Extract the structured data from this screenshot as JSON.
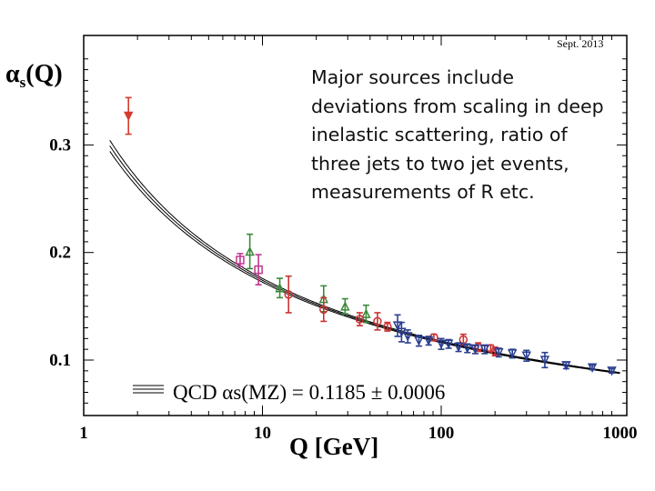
{
  "chart_data": {
    "type": "scatter",
    "date_stamp": "Sept. 2013",
    "ylabel_main": "α",
    "ylabel_sub": "s",
    "ylabel_tail": "(Q)",
    "xlabel": "Q [GeV]",
    "x_scale": "log",
    "xlim": [
      1,
      1000
    ],
    "ylim": [
      0.06,
      0.38
    ],
    "x_ticks": [
      {
        "value": 1,
        "label": "1"
      },
      {
        "value": 10,
        "label": "10"
      },
      {
        "value": 100,
        "label": "100"
      },
      {
        "value": 1000,
        "label": "1000"
      }
    ],
    "y_ticks": [
      {
        "value": 0.1,
        "label": "0.1"
      },
      {
        "value": 0.2,
        "label": "0.2"
      },
      {
        "value": 0.3,
        "label": "0.3"
      }
    ],
    "legend_text": "QCD αs(MZ) = 0.1185 ± 0.0006",
    "legend_position": "bottom-left",
    "alpha_mz": 0.1185,
    "series": [
      {
        "marker": "triangle-down",
        "color": "#d63a2c",
        "points": [
          {
            "x": 1.78,
            "y": 0.327,
            "err": 0.017
          }
        ]
      },
      {
        "marker": "square",
        "color": "#c2378f",
        "points": [
          {
            "x": 7.5,
            "y": 0.193,
            "err": 0.006
          },
          {
            "x": 9.5,
            "y": 0.184,
            "err": 0.014
          }
        ]
      },
      {
        "marker": "triangle-up",
        "color": "#3a8a3a",
        "points": [
          {
            "x": 8.5,
            "y": 0.201,
            "err": 0.016
          },
          {
            "x": 12.5,
            "y": 0.167,
            "err": 0.009
          },
          {
            "x": 22,
            "y": 0.157,
            "err": 0.012
          },
          {
            "x": 29,
            "y": 0.15,
            "err": 0.007
          },
          {
            "x": 38,
            "y": 0.143,
            "err": 0.008
          }
        ]
      },
      {
        "marker": "circle",
        "color": "#cc3333",
        "points": [
          {
            "x": 14,
            "y": 0.161,
            "err": 0.017
          },
          {
            "x": 22,
            "y": 0.147,
            "err": 0.011
          },
          {
            "x": 35,
            "y": 0.138,
            "err": 0.006
          },
          {
            "x": 44,
            "y": 0.136,
            "err": 0.008
          },
          {
            "x": 50,
            "y": 0.131,
            "err": 0.004
          },
          {
            "x": 91,
            "y": 0.121,
            "err": 0.003
          },
          {
            "x": 133,
            "y": 0.119,
            "err": 0.005
          },
          {
            "x": 161,
            "y": 0.112,
            "err": 0.004
          },
          {
            "x": 189,
            "y": 0.111,
            "err": 0.003
          },
          {
            "x": 200,
            "y": 0.108,
            "err": 0.004
          }
        ]
      },
      {
        "marker": "triangle-down",
        "color": "#2b3f8f",
        "points": [
          {
            "x": 57,
            "y": 0.132,
            "err": 0.01
          },
          {
            "x": 60,
            "y": 0.126,
            "err": 0.009
          },
          {
            "x": 65,
            "y": 0.122,
            "err": 0.006
          },
          {
            "x": 75,
            "y": 0.118,
            "err": 0.005
          },
          {
            "x": 85,
            "y": 0.118,
            "err": 0.004
          },
          {
            "x": 100,
            "y": 0.115,
            "err": 0.005
          },
          {
            "x": 110,
            "y": 0.115,
            "err": 0.004
          },
          {
            "x": 125,
            "y": 0.112,
            "err": 0.004
          },
          {
            "x": 140,
            "y": 0.111,
            "err": 0.004
          },
          {
            "x": 155,
            "y": 0.11,
            "err": 0.004
          },
          {
            "x": 175,
            "y": 0.11,
            "err": 0.004
          },
          {
            "x": 210,
            "y": 0.107,
            "err": 0.004
          },
          {
            "x": 250,
            "y": 0.106,
            "err": 0.004
          },
          {
            "x": 300,
            "y": 0.104,
            "err": 0.005
          },
          {
            "x": 380,
            "y": 0.1,
            "err": 0.007
          },
          {
            "x": 500,
            "y": 0.095,
            "err": 0.003
          },
          {
            "x": 700,
            "y": 0.093,
            "err": 0.002
          },
          {
            "x": 900,
            "y": 0.09,
            "err": 0.002
          }
        ]
      }
    ]
  },
  "annotation": {
    "text": "Major sources include deviations from scaling in deep inelastic scattering, ratio of three jets to two jet events, measurements of R etc."
  }
}
